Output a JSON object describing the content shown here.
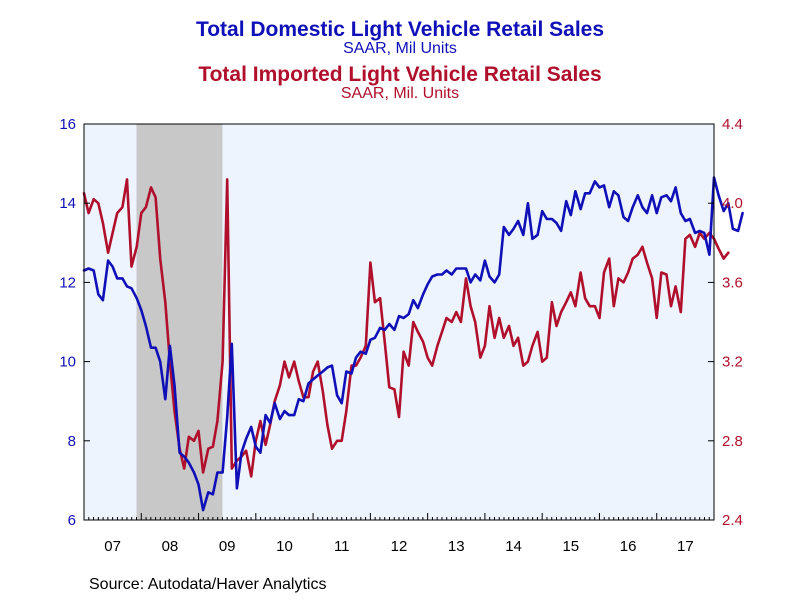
{
  "colors": {
    "domestic": "#1010b8",
    "imported": "#b0102c",
    "plot_background": "#eef4fd",
    "recession_shade": "#c8c8c8"
  },
  "titles": {
    "domestic_title": "Total Domestic Light Vehicle Retail Sales",
    "domestic_subtitle": "SAAR, Mil Units",
    "imported_title": "Total Imported Light Vehicle Retail Sales",
    "imported_subtitle": "SAAR, Mil. Units"
  },
  "source": "Source:  Autodata/Haver Analytics",
  "chart_data": {
    "type": "line",
    "x_unit": "year",
    "xlim": [
      2007.0,
      2018.0
    ],
    "x_tick_labels": [
      "07",
      "08",
      "09",
      "10",
      "11",
      "12",
      "13",
      "14",
      "15",
      "16",
      "17"
    ],
    "ylim_left": [
      6,
      16
    ],
    "y_left_ticks": [
      6,
      8,
      10,
      12,
      14,
      16
    ],
    "ylim_right": [
      2.4,
      4.4
    ],
    "y_right_ticks": [
      2.4,
      2.8,
      3.2,
      3.6,
      4.0,
      4.4
    ],
    "right_tick_labels": [
      "2.4",
      "2.8",
      "3.2",
      "3.6",
      "4.0",
      "4.4"
    ],
    "recession_shading": [
      2007.917,
      2009.417
    ],
    "grid": false,
    "series": [
      {
        "axis": "left",
        "color": "#1010b8",
        "points": [
          [
            2007.0,
            12.3
          ],
          [
            2007.08,
            12.35
          ],
          [
            2007.17,
            12.3
          ],
          [
            2007.25,
            11.7
          ],
          [
            2007.33,
            11.55
          ],
          [
            2007.42,
            12.55
          ],
          [
            2007.5,
            12.4
          ],
          [
            2007.58,
            12.1
          ],
          [
            2007.67,
            12.1
          ],
          [
            2007.75,
            11.9
          ],
          [
            2007.83,
            11.85
          ],
          [
            2007.92,
            11.6
          ],
          [
            2008.0,
            11.3
          ],
          [
            2008.08,
            10.9
          ],
          [
            2008.17,
            10.35
          ],
          [
            2008.25,
            10.35
          ],
          [
            2008.33,
            10.0
          ],
          [
            2008.42,
            9.05
          ],
          [
            2008.5,
            10.4
          ],
          [
            2008.58,
            9.4
          ],
          [
            2008.67,
            7.7
          ],
          [
            2008.75,
            7.6
          ],
          [
            2008.83,
            7.45
          ],
          [
            2008.92,
            7.2
          ],
          [
            2009.0,
            6.9
          ],
          [
            2009.08,
            6.25
          ],
          [
            2009.17,
            6.7
          ],
          [
            2009.25,
            6.65
          ],
          [
            2009.33,
            7.2
          ],
          [
            2009.42,
            7.2
          ],
          [
            2009.5,
            8.6
          ],
          [
            2009.58,
            10.45
          ],
          [
            2009.67,
            6.8
          ],
          [
            2009.75,
            7.7
          ],
          [
            2009.83,
            8.05
          ],
          [
            2009.92,
            8.35
          ],
          [
            2010.0,
            7.85
          ],
          [
            2010.08,
            7.7
          ],
          [
            2010.17,
            8.65
          ],
          [
            2010.25,
            8.45
          ],
          [
            2010.33,
            8.95
          ],
          [
            2010.42,
            8.55
          ],
          [
            2010.5,
            8.75
          ],
          [
            2010.58,
            8.65
          ],
          [
            2010.67,
            8.65
          ],
          [
            2010.75,
            9.05
          ],
          [
            2010.83,
            9.0
          ],
          [
            2010.92,
            9.45
          ],
          [
            2011.0,
            9.55
          ],
          [
            2011.08,
            9.65
          ],
          [
            2011.17,
            9.75
          ],
          [
            2011.25,
            9.85
          ],
          [
            2011.33,
            9.9
          ],
          [
            2011.42,
            9.15
          ],
          [
            2011.5,
            8.95
          ],
          [
            2011.58,
            9.75
          ],
          [
            2011.67,
            9.7
          ],
          [
            2011.75,
            10.1
          ],
          [
            2011.83,
            10.25
          ],
          [
            2011.92,
            10.2
          ],
          [
            2012.0,
            10.55
          ],
          [
            2012.08,
            10.6
          ],
          [
            2012.17,
            10.85
          ],
          [
            2012.25,
            10.8
          ],
          [
            2012.33,
            10.95
          ],
          [
            2012.42,
            10.8
          ],
          [
            2012.5,
            11.15
          ],
          [
            2012.58,
            11.1
          ],
          [
            2012.67,
            11.2
          ],
          [
            2012.75,
            11.55
          ],
          [
            2012.83,
            11.35
          ],
          [
            2012.92,
            11.7
          ],
          [
            2013.0,
            11.95
          ],
          [
            2013.08,
            12.15
          ],
          [
            2013.17,
            12.2
          ],
          [
            2013.25,
            12.2
          ],
          [
            2013.33,
            12.3
          ],
          [
            2013.42,
            12.2
          ],
          [
            2013.5,
            12.35
          ],
          [
            2013.58,
            12.35
          ],
          [
            2013.67,
            12.35
          ],
          [
            2013.75,
            12.0
          ],
          [
            2013.83,
            12.2
          ],
          [
            2013.92,
            12.05
          ],
          [
            2014.0,
            12.55
          ],
          [
            2014.08,
            12.15
          ],
          [
            2014.17,
            12.0
          ],
          [
            2014.25,
            12.2
          ],
          [
            2014.33,
            13.4
          ],
          [
            2014.42,
            13.2
          ],
          [
            2014.5,
            13.35
          ],
          [
            2014.58,
            13.55
          ],
          [
            2014.67,
            13.2
          ],
          [
            2014.75,
            14.0
          ],
          [
            2014.83,
            13.1
          ],
          [
            2014.92,
            13.2
          ],
          [
            2015.0,
            13.8
          ],
          [
            2015.08,
            13.6
          ],
          [
            2015.17,
            13.6
          ],
          [
            2015.25,
            13.5
          ],
          [
            2015.33,
            13.3
          ],
          [
            2015.42,
            14.05
          ],
          [
            2015.5,
            13.7
          ],
          [
            2015.58,
            14.3
          ],
          [
            2015.67,
            13.85
          ],
          [
            2015.75,
            14.25
          ],
          [
            2015.83,
            14.25
          ],
          [
            2015.92,
            14.55
          ],
          [
            2016.0,
            14.4
          ],
          [
            2016.08,
            14.45
          ],
          [
            2016.17,
            13.9
          ],
          [
            2016.25,
            14.3
          ],
          [
            2016.33,
            14.2
          ],
          [
            2016.42,
            13.65
          ],
          [
            2016.5,
            13.55
          ],
          [
            2016.58,
            13.9
          ],
          [
            2016.67,
            14.2
          ],
          [
            2016.75,
            13.9
          ],
          [
            2016.83,
            13.75
          ],
          [
            2016.92,
            14.2
          ],
          [
            2017.0,
            13.75
          ],
          [
            2017.08,
            14.15
          ],
          [
            2017.17,
            14.2
          ],
          [
            2017.25,
            14.05
          ],
          [
            2017.33,
            14.4
          ],
          [
            2017.42,
            13.75
          ],
          [
            2017.5,
            13.55
          ],
          [
            2017.58,
            13.6
          ],
          [
            2017.67,
            13.25
          ],
          [
            2017.75,
            13.3
          ],
          [
            2017.83,
            13.25
          ],
          [
            2017.92,
            12.7
          ],
          [
            2018.0,
            14.65
          ],
          [
            2018.08,
            14.2
          ],
          [
            2018.17,
            13.8
          ],
          [
            2018.25,
            14.0
          ],
          [
            2018.33,
            13.35
          ],
          [
            2018.42,
            13.3
          ],
          [
            2018.5,
            13.75
          ]
        ]
      },
      {
        "axis": "right",
        "color": "#b0102c",
        "points": [
          [
            2007.0,
            4.05
          ],
          [
            2007.08,
            3.95
          ],
          [
            2007.17,
            4.02
          ],
          [
            2007.25,
            4.0
          ],
          [
            2007.33,
            3.9
          ],
          [
            2007.42,
            3.75
          ],
          [
            2007.5,
            3.85
          ],
          [
            2007.58,
            3.95
          ],
          [
            2007.67,
            3.98
          ],
          [
            2007.75,
            4.12
          ],
          [
            2007.83,
            3.68
          ],
          [
            2007.92,
            3.78
          ],
          [
            2008.0,
            3.95
          ],
          [
            2008.08,
            3.98
          ],
          [
            2008.17,
            4.08
          ],
          [
            2008.25,
            4.03
          ],
          [
            2008.33,
            3.72
          ],
          [
            2008.42,
            3.5
          ],
          [
            2008.5,
            3.2
          ],
          [
            2008.58,
            2.95
          ],
          [
            2008.67,
            2.76
          ],
          [
            2008.75,
            2.66
          ],
          [
            2008.83,
            2.82
          ],
          [
            2008.92,
            2.8
          ],
          [
            2009.0,
            2.85
          ],
          [
            2009.08,
            2.64
          ],
          [
            2009.17,
            2.76
          ],
          [
            2009.25,
            2.77
          ],
          [
            2009.33,
            2.9
          ],
          [
            2009.42,
            3.2
          ],
          [
            2009.5,
            4.12
          ],
          [
            2009.58,
            2.66
          ],
          [
            2009.67,
            2.7
          ],
          [
            2009.75,
            2.72
          ],
          [
            2009.83,
            2.75
          ],
          [
            2009.92,
            2.62
          ],
          [
            2010.0,
            2.8
          ],
          [
            2010.08,
            2.9
          ],
          [
            2010.17,
            2.78
          ],
          [
            2010.25,
            2.88
          ],
          [
            2010.33,
            3.0
          ],
          [
            2010.42,
            3.08
          ],
          [
            2010.5,
            3.2
          ],
          [
            2010.58,
            3.12
          ],
          [
            2010.67,
            3.2
          ],
          [
            2010.75,
            3.1
          ],
          [
            2010.83,
            3.02
          ],
          [
            2010.92,
            3.02
          ],
          [
            2011.0,
            3.15
          ],
          [
            2011.08,
            3.2
          ],
          [
            2011.17,
            3.05
          ],
          [
            2011.25,
            2.88
          ],
          [
            2011.33,
            2.76
          ],
          [
            2011.42,
            2.8
          ],
          [
            2011.5,
            2.8
          ],
          [
            2011.58,
            2.95
          ],
          [
            2011.67,
            3.18
          ],
          [
            2011.75,
            3.18
          ],
          [
            2011.83,
            3.22
          ],
          [
            2011.92,
            3.28
          ],
          [
            2012.0,
            3.7
          ],
          [
            2012.08,
            3.5
          ],
          [
            2012.17,
            3.52
          ],
          [
            2012.25,
            3.3
          ],
          [
            2012.33,
            3.07
          ],
          [
            2012.42,
            3.06
          ],
          [
            2012.5,
            2.92
          ],
          [
            2012.58,
            3.25
          ],
          [
            2012.67,
            3.18
          ],
          [
            2012.75,
            3.4
          ],
          [
            2012.83,
            3.35
          ],
          [
            2012.92,
            3.3
          ],
          [
            2013.0,
            3.22
          ],
          [
            2013.08,
            3.18
          ],
          [
            2013.17,
            3.28
          ],
          [
            2013.25,
            3.35
          ],
          [
            2013.33,
            3.42
          ],
          [
            2013.42,
            3.4
          ],
          [
            2013.5,
            3.45
          ],
          [
            2013.58,
            3.4
          ],
          [
            2013.67,
            3.62
          ],
          [
            2013.75,
            3.48
          ],
          [
            2013.83,
            3.4
          ],
          [
            2013.92,
            3.22
          ],
          [
            2014.0,
            3.28
          ],
          [
            2014.08,
            3.48
          ],
          [
            2014.17,
            3.32
          ],
          [
            2014.25,
            3.42
          ],
          [
            2014.33,
            3.32
          ],
          [
            2014.42,
            3.38
          ],
          [
            2014.5,
            3.28
          ],
          [
            2014.58,
            3.32
          ],
          [
            2014.67,
            3.18
          ],
          [
            2014.75,
            3.2
          ],
          [
            2014.83,
            3.28
          ],
          [
            2014.92,
            3.35
          ],
          [
            2015.0,
            3.2
          ],
          [
            2015.08,
            3.22
          ],
          [
            2015.17,
            3.5
          ],
          [
            2015.25,
            3.38
          ],
          [
            2015.33,
            3.45
          ],
          [
            2015.42,
            3.5
          ],
          [
            2015.5,
            3.55
          ],
          [
            2015.58,
            3.48
          ],
          [
            2015.67,
            3.65
          ],
          [
            2015.75,
            3.52
          ],
          [
            2015.83,
            3.48
          ],
          [
            2015.92,
            3.48
          ],
          [
            2016.0,
            3.42
          ],
          [
            2016.08,
            3.65
          ],
          [
            2016.17,
            3.72
          ],
          [
            2016.25,
            3.48
          ],
          [
            2016.33,
            3.62
          ],
          [
            2016.42,
            3.6
          ],
          [
            2016.5,
            3.65
          ],
          [
            2016.58,
            3.72
          ],
          [
            2016.67,
            3.74
          ],
          [
            2016.75,
            3.78
          ],
          [
            2016.83,
            3.7
          ],
          [
            2016.92,
            3.62
          ],
          [
            2017.0,
            3.42
          ],
          [
            2017.08,
            3.65
          ],
          [
            2017.17,
            3.64
          ],
          [
            2017.25,
            3.48
          ],
          [
            2017.33,
            3.58
          ],
          [
            2017.42,
            3.45
          ],
          [
            2017.5,
            3.82
          ],
          [
            2017.58,
            3.84
          ],
          [
            2017.67,
            3.78
          ],
          [
            2017.75,
            3.85
          ],
          [
            2017.83,
            3.82
          ],
          [
            2017.92,
            3.85
          ],
          [
            2018.0,
            3.82
          ],
          [
            2018.08,
            3.77
          ],
          [
            2018.17,
            3.72
          ],
          [
            2018.25,
            3.75
          ]
        ]
      }
    ]
  }
}
